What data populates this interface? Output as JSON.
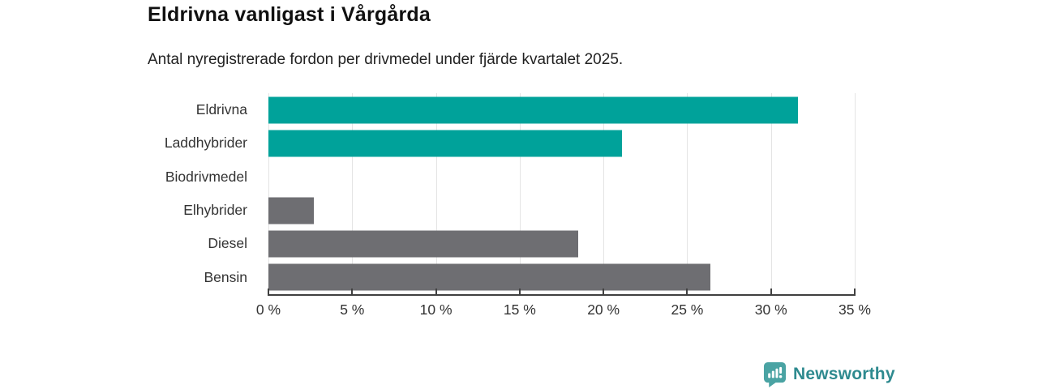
{
  "title": "Eldrivna vanligast i Vårgårda",
  "subtitle": "Antal nyregistrerade fordon per drivmedel under fjärde kvartalet 2025.",
  "chart_data": {
    "type": "bar",
    "orientation": "horizontal",
    "title": "Eldrivna vanligast i Vårgårda",
    "subtitle": "Antal nyregistrerade fordon per drivmedel under fjärde kvartalet 2025.",
    "categories": [
      "Eldrivna",
      "Laddhybrider",
      "Biodrivmedel",
      "Elhybrider",
      "Diesel",
      "Bensin"
    ],
    "values": [
      31.6,
      21.1,
      0,
      2.7,
      18.5,
      26.4
    ],
    "unit": "%",
    "bar_colors": [
      "#00a29a",
      "#00a29a",
      "#6e6e72",
      "#6e6e72",
      "#6e6e72",
      "#6e6e72"
    ],
    "x_tick_labels": [
      "0 %",
      "5 %",
      "10 %",
      "15 %",
      "20 %",
      "25 %",
      "30 %",
      "35 %"
    ],
    "x_tick_values": [
      0,
      5,
      10,
      15,
      20,
      25,
      30,
      35
    ],
    "xlim": [
      0,
      35
    ],
    "xlabel": "",
    "ylabel": "",
    "grid": true,
    "legend": false
  },
  "colors": {
    "highlight_teal": "#00a29a",
    "neutral_gray": "#6e6e72",
    "gridline": "#e4e4e4",
    "axis": "#404040",
    "text": "#333333"
  },
  "logo": {
    "text": "Newsworthy",
    "icon": "bar-chart-speech-bubble-icon",
    "text_color": "#2e8a8f",
    "icon_color": "#4aa3a3"
  }
}
